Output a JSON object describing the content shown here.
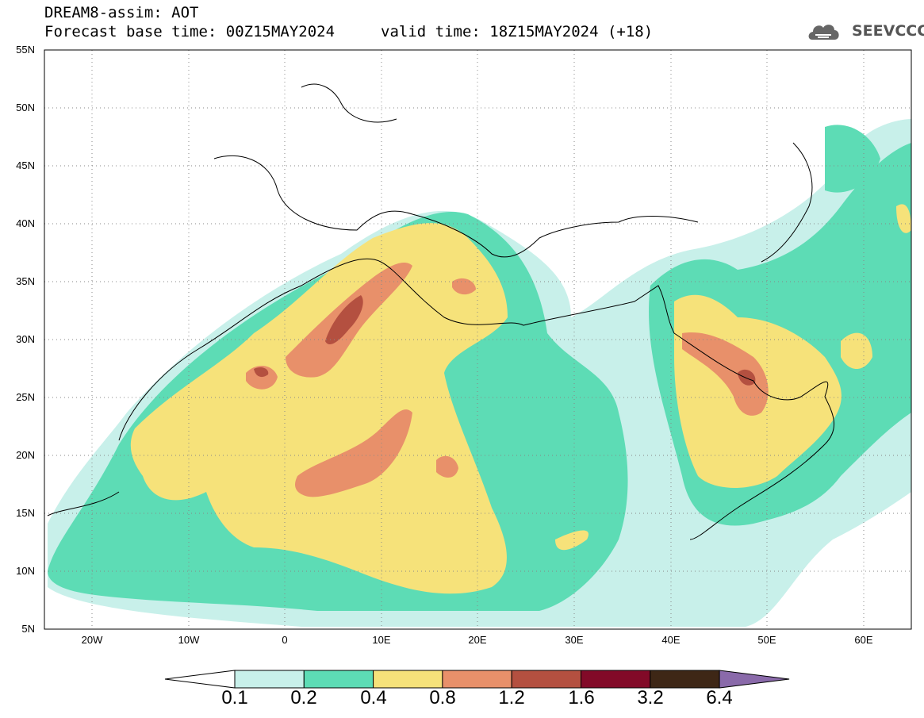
{
  "header": {
    "title_line1": "DREAM8-assim: AOT",
    "title_line2": "Forecast base time: 00Z15MAY2024",
    "valid_time": "valid time: 18Z15MAY2024 (+18)",
    "logo_text": "SEEVCCC"
  },
  "map": {
    "variable": "AOT",
    "lat_labels": [
      "55N",
      "50N",
      "45N",
      "40N",
      "35N",
      "30N",
      "25N",
      "20N",
      "15N",
      "10N",
      "5N"
    ],
    "lon_labels": [
      "20W",
      "10W",
      "0",
      "10E",
      "20E",
      "30E",
      "40E",
      "50E",
      "60E"
    ],
    "lat_range": [
      5,
      55
    ],
    "lon_range": [
      -25,
      65
    ],
    "grid": "dotted"
  },
  "legend": {
    "bounds": [
      "0.1",
      "0.2",
      "0.4",
      "0.8",
      "1.2",
      "1.6",
      "3.2",
      "6.4"
    ],
    "colors": [
      "#c8f0ea",
      "#5ddcb5",
      "#f6e27a",
      "#e8906a",
      "#b45040",
      "#820a28",
      "#3e2716",
      "#8a6aaa"
    ],
    "under_color": "#ffffff"
  }
}
